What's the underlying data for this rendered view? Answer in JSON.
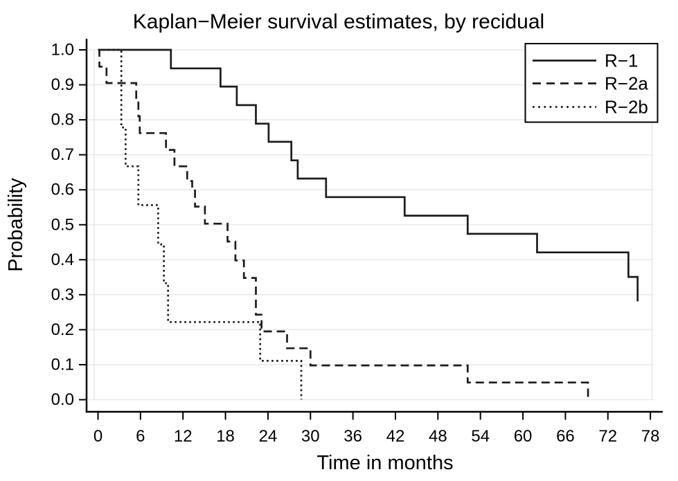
{
  "chart_data": {
    "type": "line",
    "subtype": "kaplan-meier-step",
    "title": "Kaplan−Meier survival estimates, by recidual",
    "xlabel": "Time in months",
    "ylabel": "Probability",
    "xlim": [
      0,
      78
    ],
    "ylim": [
      0.0,
      1.0
    ],
    "x_ticks": [
      0,
      6,
      12,
      18,
      24,
      30,
      36,
      42,
      48,
      54,
      60,
      66,
      72,
      78
    ],
    "y_ticks": [
      "0.0",
      "0.1",
      "0.2",
      "0.3",
      "0.4",
      "0.5",
      "0.6",
      "0.7",
      "0.8",
      "0.9",
      "1.0"
    ],
    "grid": "horizontal",
    "legend_position": "top-right",
    "line_color": "#1c1c1c",
    "series": [
      {
        "name": "R−1",
        "style": "solid",
        "points": [
          [
            0,
            1.0
          ],
          [
            10.3,
            0.947
          ],
          [
            17.3,
            0.895
          ],
          [
            19.6,
            0.842
          ],
          [
            22.3,
            0.789
          ],
          [
            24.1,
            0.737
          ],
          [
            27.3,
            0.684
          ],
          [
            28.2,
            0.632
          ],
          [
            32.2,
            0.579
          ],
          [
            43.3,
            0.526
          ],
          [
            52.2,
            0.474
          ],
          [
            62.0,
            0.421
          ],
          [
            74.9,
            0.351
          ],
          [
            76.2,
            0.281
          ]
        ]
      },
      {
        "name": "R−2a",
        "style": "dashed",
        "points": [
          [
            0,
            1.0
          ],
          [
            0.2,
            0.952
          ],
          [
            1.2,
            0.905
          ],
          [
            5.4,
            0.857
          ],
          [
            5.7,
            0.81
          ],
          [
            5.9,
            0.762
          ],
          [
            9.6,
            0.714
          ],
          [
            10.8,
            0.667
          ],
          [
            12.6,
            0.625
          ],
          [
            13.3,
            0.598
          ],
          [
            13.7,
            0.552
          ],
          [
            15.1,
            0.503
          ],
          [
            18.3,
            0.452
          ],
          [
            19.4,
            0.398
          ],
          [
            20.6,
            0.348
          ],
          [
            22.3,
            0.243
          ],
          [
            23.1,
            0.195
          ],
          [
            26.7,
            0.147
          ],
          [
            30.0,
            0.098
          ],
          [
            52.2,
            0.049
          ],
          [
            69.2,
            0.008
          ]
        ]
      },
      {
        "name": "R−2b",
        "style": "dotted",
        "points": [
          [
            0,
            1.0
          ],
          [
            3.3,
            0.778
          ],
          [
            3.9,
            0.667
          ],
          [
            5.7,
            0.556
          ],
          [
            8.5,
            0.444
          ],
          [
            9.3,
            0.333
          ],
          [
            9.9,
            0.222
          ],
          [
            22.9,
            0.111
          ],
          [
            28.7,
            0.0
          ]
        ]
      }
    ]
  }
}
